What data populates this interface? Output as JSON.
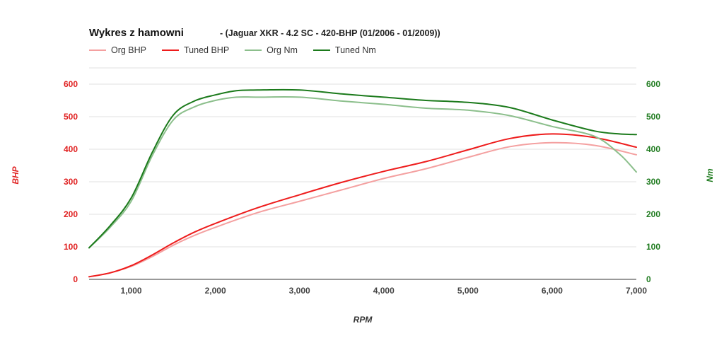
{
  "chart_data": {
    "type": "line",
    "title": "Wykres z hamowni",
    "subtitle": "- (Jaguar XKR - 4.2 SC - 420-BHP (01/2006 - 01/2009))",
    "xlabel": "RPM",
    "ylabel_left": "BHP",
    "ylabel_right": "Nm",
    "xlim": [
      500,
      7000
    ],
    "ylim_left": [
      0,
      650
    ],
    "ylim_right": [
      0,
      650
    ],
    "xticks": [
      1000,
      2000,
      3000,
      4000,
      5000,
      6000,
      7000
    ],
    "xtick_labels": [
      "1,000",
      "2,000",
      "3,000",
      "4,000",
      "5,000",
      "6,000",
      "7,000"
    ],
    "yticks_left": [
      0,
      100,
      200,
      300,
      400,
      500,
      600
    ],
    "yticks_right": [
      0,
      100,
      200,
      300,
      400,
      500,
      600
    ],
    "grid": true,
    "legend_position": "top-left",
    "series": [
      {
        "name": "Org BHP",
        "axis": "left",
        "color": "#f4a0a0",
        "x": [
          500,
          750,
          1000,
          1250,
          1500,
          1750,
          2000,
          2500,
          3000,
          3500,
          4000,
          4500,
          5000,
          5500,
          6000,
          6500,
          7000
        ],
        "values": [
          8,
          20,
          40,
          70,
          105,
          135,
          160,
          205,
          240,
          275,
          310,
          340,
          375,
          408,
          420,
          412,
          383
        ]
      },
      {
        "name": "Tuned BHP",
        "axis": "left",
        "color": "#ee1c1c",
        "x": [
          500,
          750,
          1000,
          1250,
          1500,
          1750,
          2000,
          2500,
          3000,
          3500,
          4000,
          4500,
          5000,
          5500,
          6000,
          6500,
          7000
        ],
        "values": [
          8,
          20,
          42,
          75,
          112,
          145,
          172,
          220,
          260,
          298,
          332,
          362,
          398,
          433,
          447,
          436,
          406
        ]
      },
      {
        "name": "Org Nm",
        "axis": "right",
        "color": "#8cbf8c",
        "x": [
          500,
          750,
          1000,
          1250,
          1500,
          1750,
          2000,
          2250,
          2500,
          3000,
          3500,
          4000,
          4500,
          5000,
          5500,
          6000,
          6500,
          6800,
          7000
        ],
        "values": [
          97,
          160,
          240,
          380,
          490,
          530,
          550,
          560,
          560,
          560,
          548,
          538,
          526,
          520,
          503,
          470,
          440,
          385,
          330
        ]
      },
      {
        "name": "Tuned Nm",
        "axis": "right",
        "color": "#1b7a1b",
        "x": [
          500,
          750,
          1000,
          1250,
          1500,
          1750,
          2000,
          2250,
          2500,
          3000,
          3500,
          4000,
          4500,
          5000,
          5500,
          6000,
          6500,
          6800,
          7000
        ],
        "values": [
          97,
          165,
          250,
          390,
          505,
          548,
          567,
          580,
          582,
          582,
          570,
          560,
          550,
          544,
          528,
          490,
          456,
          447,
          445
        ]
      }
    ]
  }
}
